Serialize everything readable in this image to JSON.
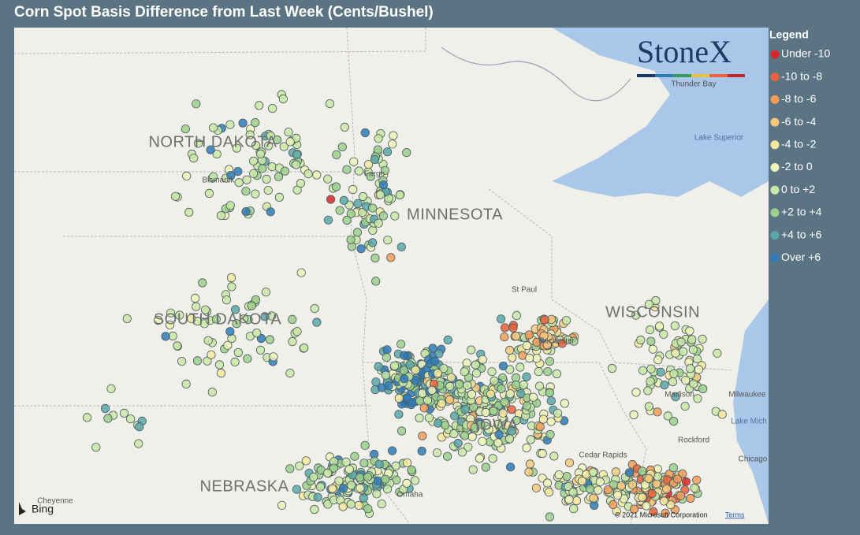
{
  "header": {
    "title": "Corn Spot Basis Difference from Last Week (Cents/Bushel)"
  },
  "logo": {
    "text": "StoneX"
  },
  "legend": {
    "title": "Legend",
    "items": [
      {
        "label": "Under -10",
        "color": "#d7262b"
      },
      {
        "label": "-10 to -8",
        "color": "#e8623c"
      },
      {
        "label": "-8 to -6",
        "color": "#f29c58"
      },
      {
        "label": "-6 to -4",
        "color": "#f7c87c"
      },
      {
        "label": "-4 to -2",
        "color": "#f5e89c"
      },
      {
        "label": "-2 to 0",
        "color": "#eef3b8"
      },
      {
        "label": "0 to +2",
        "color": "#c9e7a6"
      },
      {
        "label": "+2 to +4",
        "color": "#9dd08c"
      },
      {
        "label": "+4 to +6",
        "color": "#5aa7a9"
      },
      {
        "label": "Over +6",
        "color": "#2f7bb7"
      }
    ]
  },
  "map": {
    "labels": [
      "NORTH DAKOTA",
      "MINNESOTA",
      "SOUTH DAKOTA",
      "WISCONSIN",
      "NEBRASKA",
      "IOWA"
    ],
    "places": [
      "Bismarck",
      "Fargo",
      "Thunder Bay",
      "Lake Superior",
      "Madison",
      "Milwaukee",
      "Lake Mich",
      "Rockford",
      "Chicago",
      "Omaha",
      "Rochester",
      "St Paul",
      "Cedar Rapids",
      "Cheyenne"
    ],
    "attribution": "Bing",
    "copyright": "© 2021 Microsoft Corporation",
    "terms": "Terms"
  }
}
